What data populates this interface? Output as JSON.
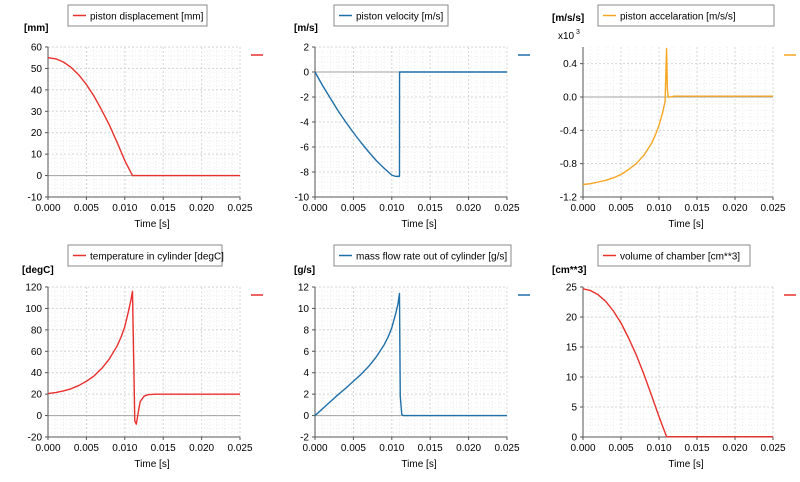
{
  "chart_data": [
    {
      "type": "line",
      "title": "piston displacement [mm]",
      "unit": "[mm]",
      "xlabel": "Time [s]",
      "xlim": [
        0,
        0.025
      ],
      "ylim": [
        -10,
        60
      ],
      "xticks": [
        "0.000",
        "0.005",
        "0.010",
        "0.015",
        "0.020",
        "0.025"
      ],
      "yticks": [
        {
          "v": -10,
          "t": "-10"
        },
        {
          "v": 0,
          "t": "0"
        },
        {
          "v": 10,
          "t": "10"
        },
        {
          "v": 20,
          "t": "20"
        },
        {
          "v": 30,
          "t": "30"
        },
        {
          "v": 40,
          "t": "40"
        },
        {
          "v": 50,
          "t": "50"
        },
        {
          "v": 60,
          "t": "60"
        }
      ],
      "color": "#e8302c",
      "series": [
        {
          "name": "piston displacement [mm]",
          "x": [
            0,
            0.001,
            0.002,
            0.003,
            0.004,
            0.005,
            0.006,
            0.007,
            0.008,
            0.009,
            0.01,
            0.011,
            0.012,
            0.015,
            0.02,
            0.025
          ],
          "y": [
            55,
            54.5,
            53,
            50.5,
            47,
            42.5,
            37,
            30.5,
            23.5,
            15.5,
            7,
            0,
            0,
            0,
            0,
            0
          ]
        }
      ]
    },
    {
      "type": "line",
      "title": "piston velocity [m/s]",
      "unit": "[m/s]",
      "xlabel": "Time [s]",
      "xlim": [
        0,
        0.025
      ],
      "ylim": [
        -10,
        2
      ],
      "xticks": [
        "0.000",
        "0.005",
        "0.010",
        "0.015",
        "0.020",
        "0.025"
      ],
      "yticks": [
        {
          "v": -10,
          "t": "-10"
        },
        {
          "v": -8,
          "t": "-8"
        },
        {
          "v": -6,
          "t": "-6"
        },
        {
          "v": -4,
          "t": "-4"
        },
        {
          "v": -2,
          "t": "-2"
        },
        {
          "v": 0,
          "t": "0"
        },
        {
          "v": 2,
          "t": "2"
        }
      ],
      "color": "#1f6fa8",
      "series": [
        {
          "name": "piston velocity [m/s]",
          "x": [
            0,
            0.001,
            0.002,
            0.003,
            0.004,
            0.005,
            0.006,
            0.007,
            0.008,
            0.009,
            0.01,
            0.0105,
            0.011,
            0.01101,
            0.0111,
            0.012,
            0.015,
            0.02,
            0.025
          ],
          "y": [
            0,
            -1.1,
            -2.1,
            -3.1,
            -4.0,
            -4.85,
            -5.65,
            -6.4,
            -7.1,
            -7.7,
            -8.25,
            -8.35,
            -8.35,
            0,
            0,
            0,
            0,
            0,
            0
          ]
        }
      ]
    },
    {
      "type": "line",
      "title": "piston accelaration [m/s/s]",
      "unit": "[m/s/s]",
      "multiplier": "x10",
      "multiplier_exp": "3",
      "xlabel": "Time [s]",
      "xlim": [
        0,
        0.025
      ],
      "ylim": [
        -1.2,
        0.6
      ],
      "xticks": [
        "0.000",
        "0.005",
        "0.010",
        "0.015",
        "0.020",
        "0.025"
      ],
      "yticks": [
        {
          "v": -1.2,
          "t": "-1.2"
        },
        {
          "v": -0.8,
          "t": "-0.8"
        },
        {
          "v": -0.4,
          "t": "-0.4"
        },
        {
          "v": 0,
          "t": "0.0"
        },
        {
          "v": 0.4,
          "t": "0.4"
        }
      ],
      "color": "#f5a623",
      "series": [
        {
          "name": "piston accelaration [m/s/s]",
          "x": [
            0,
            0.001,
            0.002,
            0.003,
            0.004,
            0.005,
            0.006,
            0.007,
            0.008,
            0.009,
            0.0095,
            0.01,
            0.0105,
            0.0108,
            0.011,
            0.0111,
            0.0112,
            0.0115,
            0.012,
            0.015,
            0.02,
            0.025
          ],
          "y": [
            -1.05,
            -1.04,
            -1.02,
            -1.0,
            -0.97,
            -0.93,
            -0.87,
            -0.8,
            -0.7,
            -0.56,
            -0.46,
            -0.34,
            -0.18,
            -0.05,
            0.58,
            0.1,
            0.0,
            0.0,
            0.01,
            0.01,
            0.01,
            0.01
          ]
        }
      ]
    },
    {
      "type": "line",
      "title": "temperature in cylinder [degC]",
      "unit": "[degC]",
      "xlabel": "Time [s]",
      "xlim": [
        0,
        0.025
      ],
      "ylim": [
        -20,
        120
      ],
      "xticks": [
        "0.000",
        "0.005",
        "0.010",
        "0.015",
        "0.020",
        "0.025"
      ],
      "yticks": [
        {
          "v": -20,
          "t": "-20"
        },
        {
          "v": 0,
          "t": "0"
        },
        {
          "v": 20,
          "t": "20"
        },
        {
          "v": 40,
          "t": "40"
        },
        {
          "v": 60,
          "t": "60"
        },
        {
          "v": 80,
          "t": "80"
        },
        {
          "v": 100,
          "t": "100"
        },
        {
          "v": 120,
          "t": "120"
        }
      ],
      "color": "#e8302c",
      "series": [
        {
          "name": "temperature in cylinder [degC]",
          "x": [
            0,
            0.001,
            0.002,
            0.003,
            0.004,
            0.005,
            0.006,
            0.007,
            0.008,
            0.009,
            0.0095,
            0.01,
            0.0105,
            0.0108,
            0.011,
            0.0113,
            0.0115,
            0.0118,
            0.012,
            0.0125,
            0.013,
            0.014,
            0.015,
            0.02,
            0.025
          ],
          "y": [
            20.5,
            21.5,
            23,
            25,
            28,
            32,
            37,
            44,
            53,
            65,
            73,
            83,
            98,
            108,
            116,
            -5,
            -8,
            5,
            13,
            18,
            19.5,
            20,
            20,
            20,
            20
          ]
        }
      ]
    },
    {
      "type": "line",
      "title": "mass flow rate out of cylinder [g/s]",
      "unit": "[g/s]",
      "xlabel": "Time [s]",
      "xlim": [
        0,
        0.025
      ],
      "ylim": [
        -2,
        12
      ],
      "xticks": [
        "0.000",
        "0.005",
        "0.010",
        "0.015",
        "0.020",
        "0.025"
      ],
      "yticks": [
        {
          "v": -2,
          "t": "-2"
        },
        {
          "v": 0,
          "t": "0"
        },
        {
          "v": 2,
          "t": "2"
        },
        {
          "v": 4,
          "t": "4"
        },
        {
          "v": 6,
          "t": "6"
        },
        {
          "v": 8,
          "t": "8"
        },
        {
          "v": 10,
          "t": "10"
        },
        {
          "v": 12,
          "t": "12"
        }
      ],
      "color": "#1f6fa8",
      "series": [
        {
          "name": "mass flow rate out of cylinder [g/s]",
          "x": [
            0,
            0.001,
            0.002,
            0.003,
            0.004,
            0.005,
            0.006,
            0.007,
            0.008,
            0.009,
            0.0095,
            0.01,
            0.0105,
            0.0108,
            0.011,
            0.0111,
            0.0113,
            0.0115,
            0.012,
            0.015,
            0.02,
            0.025
          ],
          "y": [
            0,
            0.65,
            1.3,
            1.95,
            2.55,
            3.2,
            3.85,
            4.6,
            5.5,
            6.6,
            7.3,
            8.2,
            9.5,
            10.4,
            11.4,
            1.8,
            0.1,
            0,
            0,
            0,
            0,
            0
          ]
        }
      ]
    },
    {
      "type": "line",
      "title": "volume of chamber [cm**3]",
      "unit": "[cm**3]",
      "xlabel": "Time [s]",
      "xlim": [
        0,
        0.025
      ],
      "ylim": [
        0,
        25
      ],
      "xticks": [
        "0.000",
        "0.005",
        "0.010",
        "0.015",
        "0.020",
        "0.025"
      ],
      "yticks": [
        {
          "v": 0,
          "t": "0"
        },
        {
          "v": 5,
          "t": "5"
        },
        {
          "v": 10,
          "t": "10"
        },
        {
          "v": 15,
          "t": "15"
        },
        {
          "v": 20,
          "t": "20"
        },
        {
          "v": 25,
          "t": "25"
        }
      ],
      "color": "#e8302c",
      "series": [
        {
          "name": "volume of chamber [cm**3]",
          "x": [
            0,
            0.001,
            0.002,
            0.003,
            0.004,
            0.005,
            0.006,
            0.007,
            0.008,
            0.009,
            0.01,
            0.011,
            0.012,
            0.015,
            0.02,
            0.025
          ],
          "y": [
            24.7,
            24.4,
            23.7,
            22.6,
            21.0,
            19.0,
            16.5,
            13.7,
            10.5,
            7.0,
            3.4,
            0.05,
            0.05,
            0.05,
            0.05,
            0.05
          ]
        }
      ]
    }
  ]
}
